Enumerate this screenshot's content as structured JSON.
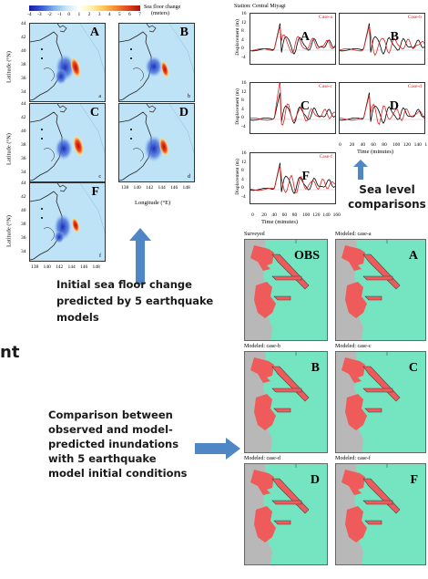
{
  "colorbar": {
    "ticks": [
      "-4",
      "-3",
      "-2",
      "-1",
      "0",
      "1",
      "2",
      "3",
      "4",
      "5",
      "6",
      "7"
    ],
    "title": "Sea floor change",
    "unit": "(meters)"
  },
  "maps": {
    "panels": [
      {
        "letter": "A",
        "sub": "a"
      },
      {
        "letter": "B",
        "sub": "b"
      },
      {
        "letter": "C",
        "sub": "c"
      },
      {
        "letter": "D",
        "sub": "d"
      },
      {
        "letter": "F",
        "sub": "f"
      }
    ],
    "lat_ticks": [
      "44",
      "42",
      "40",
      "38",
      "36",
      "34"
    ],
    "lon_ticks": [
      "138",
      "140",
      "142",
      "144",
      "146",
      "148"
    ],
    "ylabel": "Latitude (°N)",
    "xlabel": "Longitude (°E)"
  },
  "timeseries": {
    "station": "Station: Central Miyagi",
    "panels": [
      {
        "case": "Case-a",
        "letter": "A"
      },
      {
        "case": "Case-b",
        "letter": "B"
      },
      {
        "case": "Case-c",
        "letter": "C"
      },
      {
        "case": "Case-d",
        "letter": "D"
      },
      {
        "case": "Case-f",
        "letter": "F"
      }
    ],
    "yticks": [
      "16",
      "12",
      "8",
      "4",
      "0",
      "-4"
    ],
    "xticks": [
      "0",
      "20",
      "40",
      "60",
      "80",
      "100",
      "120",
      "140",
      "160"
    ],
    "xticks_short": [
      "0",
      "20",
      "40",
      "60",
      "80",
      "100",
      "120",
      "140",
      "1"
    ],
    "ylabel": "Displacement (m)",
    "xlabel": "Time (minutes)"
  },
  "captions": {
    "sea_level": [
      "Sea level",
      "comparisons"
    ],
    "initial": [
      "Initial sea floor change",
      "predicted by 5 earthquake",
      "models"
    ],
    "comparison": [
      "Comparison between",
      "observed and model-",
      "predicted inundations",
      "with 5 earthquake",
      "model initial conditions"
    ],
    "cut_off": "nt"
  },
  "inundation": {
    "panels": [
      {
        "title": "Surveyed",
        "label": "OBS"
      },
      {
        "title": "Modeled: case-a",
        "label": "A"
      },
      {
        "title": "Modeled: case-b",
        "label": "B"
      },
      {
        "title": "Modeled: case-c",
        "label": "C"
      },
      {
        "title": "Modeled: case-d",
        "label": "D"
      },
      {
        "title": "Modeled: case-f",
        "label": "F"
      }
    ]
  },
  "colors": {
    "arrow": "#4f86c6",
    "sea": "#75e5c1",
    "land": "#b8b8b8",
    "inundated": "#ef5a5a",
    "case_label": "#dd2222",
    "observed": "#000000",
    "modeled": "#dd2222"
  }
}
